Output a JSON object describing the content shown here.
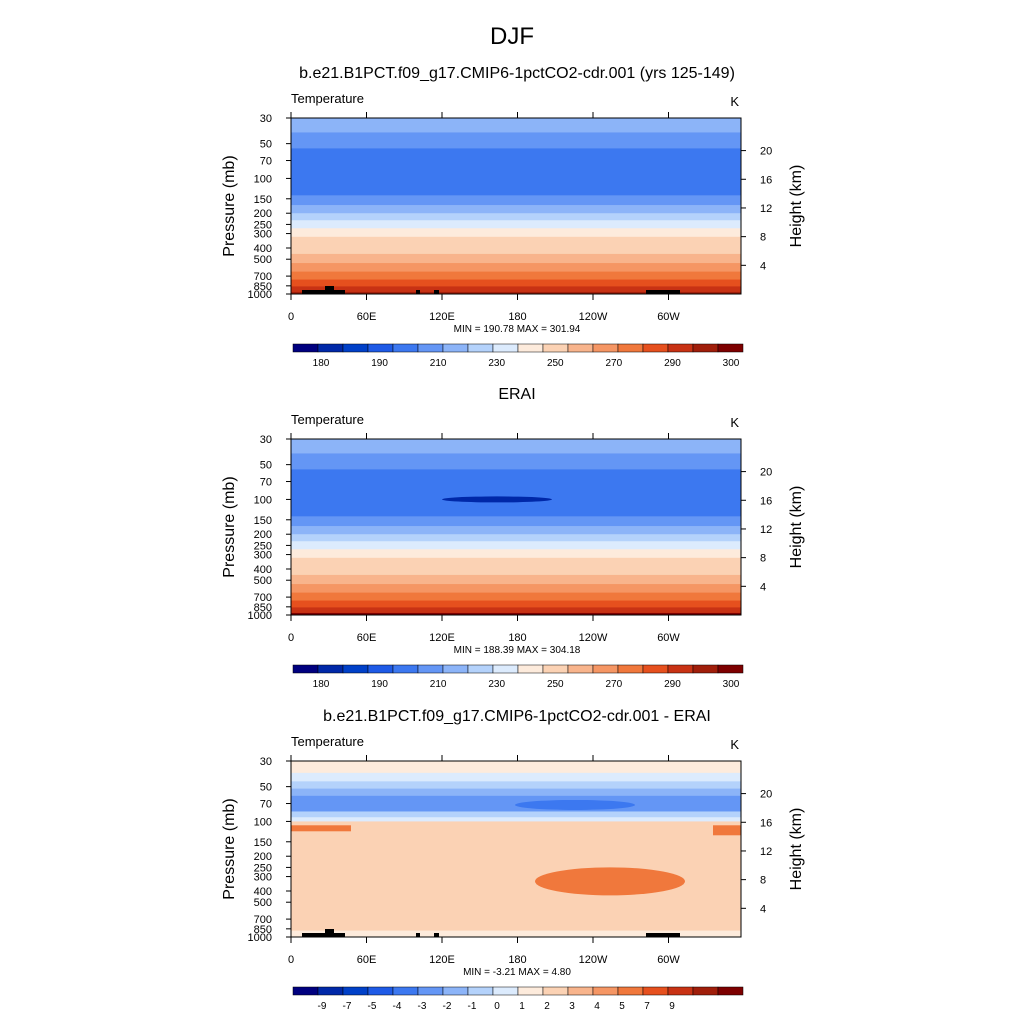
{
  "figure": {
    "title": "DJF"
  },
  "colorbars": {
    "abs": {
      "colors": [
        "#00007f",
        "#0028a8",
        "#0040c8",
        "#1e5ae6",
        "#3c78f0",
        "#6496f5",
        "#8cb4f8",
        "#b4d2fb",
        "#dcebfd",
        "#fdebdc",
        "#fbd2b4",
        "#f8b48c",
        "#f59664",
        "#f0783c",
        "#e6501e",
        "#c83214",
        "#a01e0a",
        "#7d0000"
      ],
      "tick_labels": [
        "180",
        "190",
        "210",
        "230",
        "250",
        "270",
        "290",
        "300"
      ]
    },
    "diff": {
      "colors": [
        "#00007f",
        "#0028a8",
        "#0040c8",
        "#1e5ae6",
        "#3c78f0",
        "#6496f5",
        "#8cb4f8",
        "#b4d2fb",
        "#dcebfd",
        "#fdebdc",
        "#fbd2b4",
        "#f8b48c",
        "#f59664",
        "#f0783c",
        "#e6501e",
        "#c83214",
        "#a01e0a",
        "#7d0000"
      ],
      "tick_labels": [
        "-9",
        "-7",
        "-5",
        "-4",
        "-3",
        "-2",
        "-1",
        "0",
        "1",
        "2",
        "3",
        "4",
        "5",
        "7",
        "9"
      ]
    }
  },
  "chart_data": [
    {
      "type": "heatmap",
      "title": "b.e21.B1PCT.f09_g17.CMIP6-1pctCO2-cdr.001 (yrs 125-149)",
      "variable_label": "Temperature",
      "units": "K",
      "ylabel": "Pressure (mb)",
      "y2label": "Height (km)",
      "x_ticks": [
        "0",
        "60E",
        "120E",
        "180",
        "120W",
        "60W"
      ],
      "y_ticks": [
        "30",
        "50",
        "70",
        "100",
        "150",
        "200",
        "250",
        "300",
        "400",
        "500",
        "700",
        "850",
        "1000"
      ],
      "y2_ticks": [
        "20",
        "16",
        "12",
        "8",
        "4"
      ],
      "stats": "MIN = 190.78  MAX = 301.94",
      "min": 190.78,
      "max": 301.94,
      "colorbar": "abs",
      "levels_by_pressure": [
        {
          "p_top": 30,
          "p_bottom": 40,
          "value": 215
        },
        {
          "p_top": 40,
          "p_bottom": 55,
          "value": 205
        },
        {
          "p_top": 55,
          "p_bottom": 140,
          "value": 195
        },
        {
          "p_top": 140,
          "p_bottom": 170,
          "value": 205
        },
        {
          "p_top": 170,
          "p_bottom": 200,
          "value": 215
        },
        {
          "p_top": 200,
          "p_bottom": 230,
          "value": 225
        },
        {
          "p_top": 230,
          "p_bottom": 270,
          "value": 235
        },
        {
          "p_top": 270,
          "p_bottom": 320,
          "value": 245
        },
        {
          "p_top": 320,
          "p_bottom": 380,
          "value": 252
        },
        {
          "p_top": 380,
          "p_bottom": 450,
          "value": 258
        },
        {
          "p_top": 450,
          "p_bottom": 540,
          "value": 265
        },
        {
          "p_top": 540,
          "p_bottom": 640,
          "value": 272
        },
        {
          "p_top": 640,
          "p_bottom": 750,
          "value": 280
        },
        {
          "p_top": 750,
          "p_bottom": 860,
          "value": 286
        },
        {
          "p_top": 860,
          "p_bottom": 960,
          "value": 292
        },
        {
          "p_top": 960,
          "p_bottom": 1000,
          "value": 298
        }
      ]
    },
    {
      "type": "heatmap",
      "title": "ERAI",
      "variable_label": "Temperature",
      "units": "K",
      "ylabel": "Pressure (mb)",
      "y2label": "Height (km)",
      "x_ticks": [
        "0",
        "60E",
        "120E",
        "180",
        "120W",
        "60W"
      ],
      "y_ticks": [
        "30",
        "50",
        "70",
        "100",
        "150",
        "200",
        "250",
        "300",
        "400",
        "500",
        "700",
        "850",
        "1000"
      ],
      "y2_ticks": [
        "20",
        "16",
        "12",
        "8",
        "4"
      ],
      "stats": "MIN = 188.39  MAX = 304.18",
      "min": 188.39,
      "max": 304.18,
      "colorbar": "abs",
      "levels_by_pressure": [
        {
          "p_top": 30,
          "p_bottom": 40,
          "value": 215
        },
        {
          "p_top": 40,
          "p_bottom": 55,
          "value": 205
        },
        {
          "p_top": 55,
          "p_bottom": 140,
          "value": 195
        },
        {
          "p_top": 140,
          "p_bottom": 170,
          "value": 205
        },
        {
          "p_top": 170,
          "p_bottom": 200,
          "value": 215
        },
        {
          "p_top": 200,
          "p_bottom": 230,
          "value": 225
        },
        {
          "p_top": 230,
          "p_bottom": 270,
          "value": 235
        },
        {
          "p_top": 270,
          "p_bottom": 320,
          "value": 245
        },
        {
          "p_top": 320,
          "p_bottom": 380,
          "value": 252
        },
        {
          "p_top": 380,
          "p_bottom": 450,
          "value": 258
        },
        {
          "p_top": 450,
          "p_bottom": 540,
          "value": 265
        },
        {
          "p_top": 540,
          "p_bottom": 640,
          "value": 272
        },
        {
          "p_top": 640,
          "p_bottom": 750,
          "value": 280
        },
        {
          "p_top": 750,
          "p_bottom": 860,
          "value": 286
        },
        {
          "p_top": 860,
          "p_bottom": 960,
          "value": 292
        },
        {
          "p_top": 960,
          "p_bottom": 1000,
          "value": 300
        }
      ]
    },
    {
      "type": "heatmap",
      "title": "b.e21.B1PCT.f09_g17.CMIP6-1pctCO2-cdr.001 - ERAI",
      "variable_label": "Temperature",
      "units": "K",
      "ylabel": "Pressure (mb)",
      "y2label": "Height (km)",
      "x_ticks": [
        "0",
        "60E",
        "120E",
        "180",
        "120W",
        "60W"
      ],
      "y_ticks": [
        "30",
        "50",
        "70",
        "100",
        "150",
        "200",
        "250",
        "300",
        "400",
        "500",
        "700",
        "850",
        "1000"
      ],
      "y2_ticks": [
        "20",
        "16",
        "12",
        "8",
        "4"
      ],
      "stats": "MIN = -3.21  MAX =   4.80",
      "min": -3.21,
      "max": 4.8,
      "colorbar": "diff",
      "levels_by_pressure": [
        {
          "p_top": 30,
          "p_bottom": 38,
          "value": 1.5
        },
        {
          "p_top": 38,
          "p_bottom": 45,
          "value": 0.5
        },
        {
          "p_top": 45,
          "p_bottom": 52,
          "value": -0.5
        },
        {
          "p_top": 52,
          "p_bottom": 60,
          "value": -1.5
        },
        {
          "p_top": 60,
          "p_bottom": 82,
          "value": -2.5
        },
        {
          "p_top": 82,
          "p_bottom": 92,
          "value": -0.5
        },
        {
          "p_top": 92,
          "p_bottom": 100,
          "value": 0.5
        },
        {
          "p_top": 100,
          "p_bottom": 880,
          "value": 2.5
        },
        {
          "p_top": 880,
          "p_bottom": 1000,
          "value": 1.5
        }
      ]
    }
  ]
}
